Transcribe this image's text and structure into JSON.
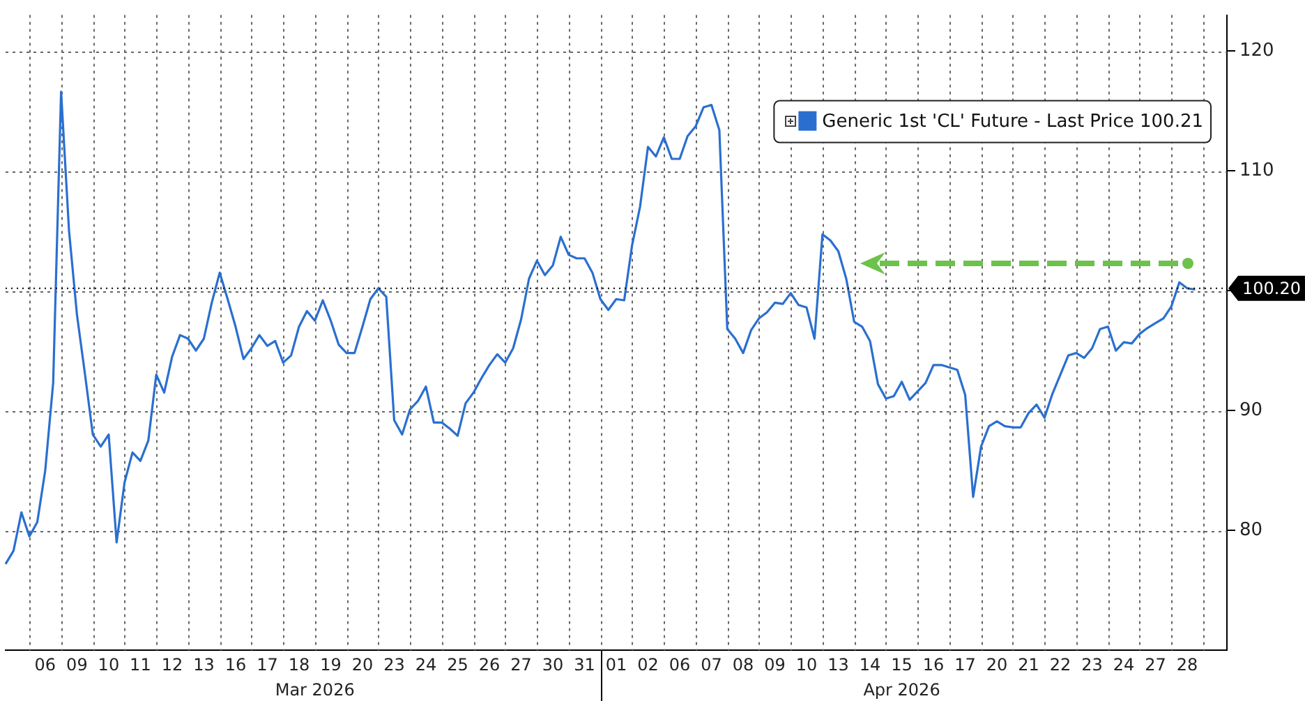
{
  "chart_data": {
    "type": "line",
    "legend": "top right",
    "grid": true,
    "categories": [
      null,
      null,
      null,
      null,
      null,
      "06",
      null,
      null,
      null,
      "09",
      null,
      null,
      null,
      "10",
      null,
      null,
      null,
      "11",
      null,
      null,
      null,
      "12",
      null,
      null,
      null,
      "13",
      null,
      null,
      null,
      "16",
      null,
      null,
      null,
      "17",
      null,
      null,
      null,
      "18",
      null,
      null,
      null,
      "19",
      null,
      null,
      null,
      "20",
      null,
      null,
      null,
      "23",
      null,
      null,
      null,
      "24",
      null,
      null,
      null,
      "25",
      null,
      null,
      null,
      "26",
      null,
      null,
      null,
      "27",
      null,
      null,
      null,
      "30",
      null,
      null,
      null,
      "31",
      null,
      null,
      null,
      "01",
      null,
      null,
      null,
      "02",
      null,
      null,
      null,
      "06",
      null,
      null,
      null,
      "07",
      null,
      null,
      null,
      "08",
      null,
      null,
      null,
      "09",
      null,
      null,
      null,
      "10",
      null,
      null,
      null,
      "13",
      null,
      null,
      null,
      "14",
      null,
      null,
      null,
      "15",
      null,
      null,
      null,
      "16",
      null,
      null,
      null,
      "17",
      null,
      null,
      null,
      "20",
      null,
      null,
      null,
      "21",
      null,
      null,
      null,
      "22",
      null,
      null,
      null,
      "23",
      null,
      null,
      null,
      "24",
      null,
      null,
      null,
      "27",
      null,
      null,
      null,
      "28",
      null,
      null,
      null,
      null,
      null
    ],
    "ylim": [
      70,
      123
    ],
    "yticks": [
      80,
      90,
      {
        "value": 100,
        "label": null
      },
      110,
      120
    ],
    "ref_lines": [
      {
        "axis": "y",
        "value": 100.2,
        "label": "100.20",
        "color": "#000000"
      }
    ],
    "annotations": [
      "Mar 2026",
      "Apr 2026"
    ],
    "series": [
      {
        "name": "Generic 1st 'CL' Future - Last Price 100.21",
        "color": "#2a6fd0",
        "values": [
          77.2,
          78.3,
          81.5,
          79.5,
          80.7,
          85,
          92.3,
          116.6,
          105.0,
          98,
          93.1,
          88,
          87,
          88,
          79,
          84,
          86.5,
          85.8,
          87.5,
          93,
          91.5,
          94.5,
          96.3,
          96,
          95,
          96,
          99,
          101.5,
          99.3,
          97,
          94.3,
          95.2,
          96.3,
          95.4,
          95.8,
          94,
          94.6,
          97,
          98.3,
          97.5,
          99.2,
          97.5,
          95.5,
          94.8,
          94.8,
          97,
          99.3,
          100.2,
          99.5,
          89.2,
          88,
          90.1,
          90.8,
          92,
          89,
          89,
          88.5,
          87.9,
          90.6,
          91.5,
          92.7,
          93.8,
          94.7,
          94,
          95.2,
          97.6,
          101,
          102.5,
          101.3,
          102.1,
          104.5,
          103,
          102.7,
          102.7,
          101.5,
          99.3,
          98.4,
          99.3,
          99.2,
          103.8,
          107,
          112,
          111.2,
          112.8,
          111,
          111,
          112.9,
          113.7,
          115.3,
          115.5,
          113.4,
          96.8,
          96,
          94.8,
          96.7,
          97.7,
          98.2,
          99,
          98.9,
          99.8,
          98.8,
          98.6,
          96,
          104.7,
          104.2,
          103.3,
          101,
          97.4,
          97,
          95.8,
          92.2,
          91,
          91.2,
          92.4,
          90.9,
          91.6,
          92.3,
          93.8,
          93.8,
          93.6,
          93.4,
          91.3,
          82.8,
          87,
          88.7,
          89.1,
          88.7,
          88.6,
          88.6,
          89.8,
          90.5,
          89.4,
          91.4,
          93,
          94.6,
          94.8,
          94.4,
          95.2,
          96.8,
          97,
          95,
          95.7,
          95.6,
          96.4,
          96.9,
          97.3,
          97.7,
          98.7,
          100.7,
          100.2,
          100.1,
          null,
          null,
          null,
          null
        ]
      }
    ]
  }
}
